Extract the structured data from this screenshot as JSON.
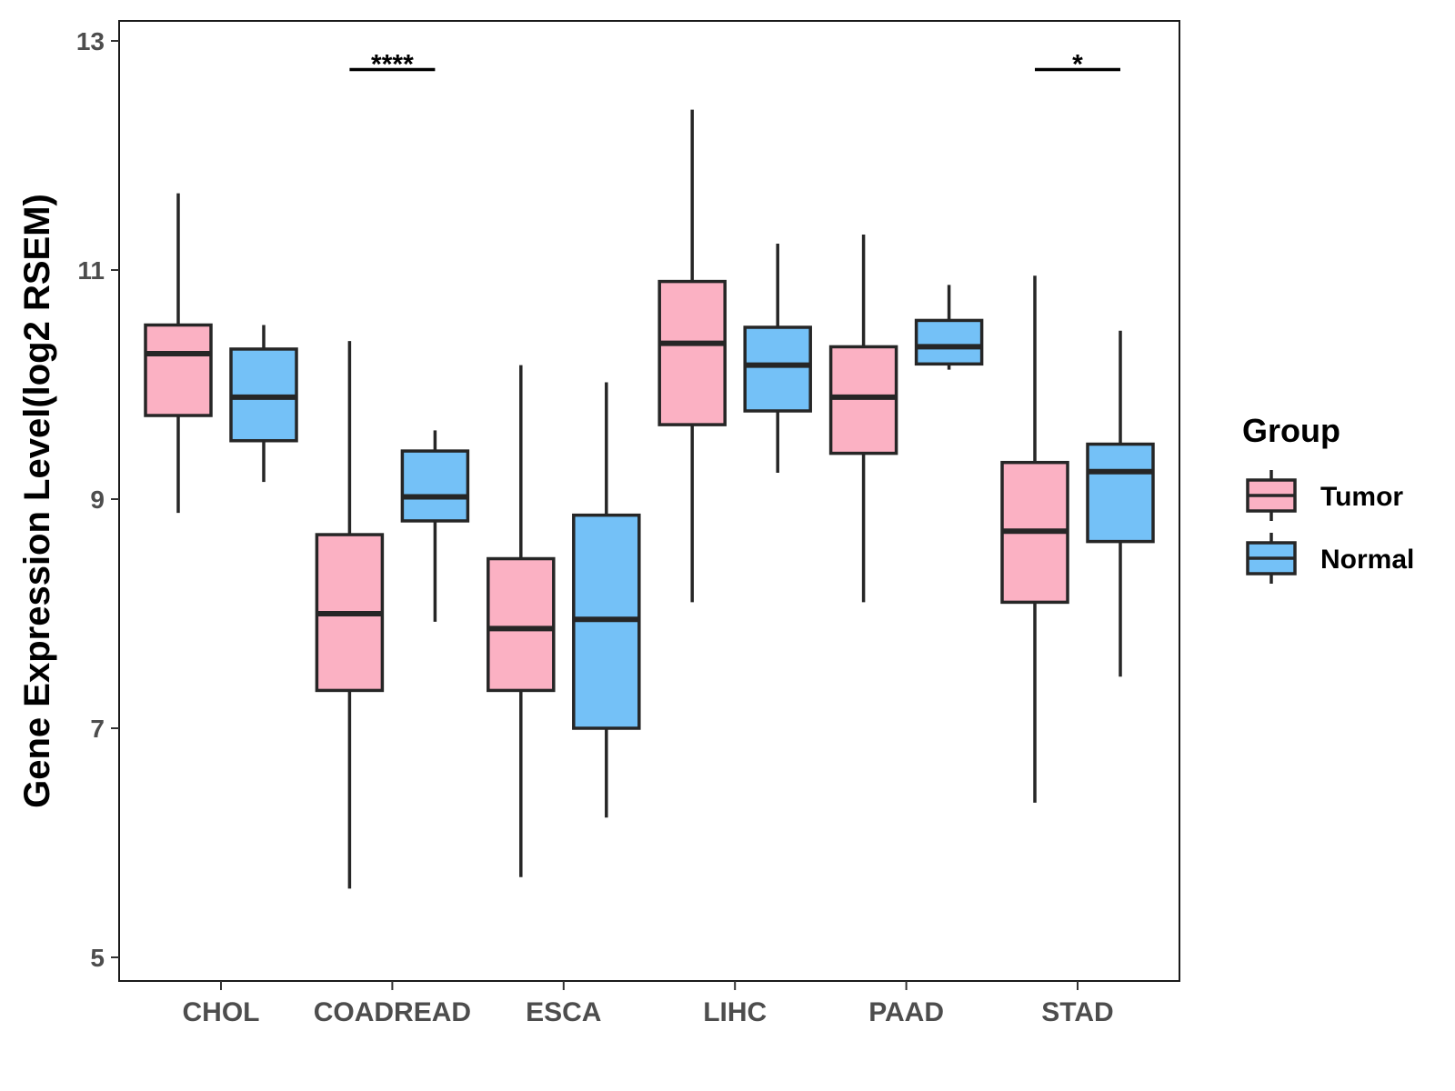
{
  "chart_data": {
    "type": "boxplot",
    "title": "",
    "xlabel": "",
    "ylabel": "Gene Expression Level(log2 RSEM)",
    "ylim": [
      4.8,
      13.2
    ],
    "yticks": [
      5,
      7,
      9,
      11,
      13
    ],
    "categories": [
      "CHOL",
      "COADREAD",
      "ESCA",
      "LIHC",
      "PAAD",
      "STAD"
    ],
    "legend": {
      "title": "Group",
      "position": "right",
      "entries": [
        "Tumor",
        "Normal"
      ]
    },
    "series": [
      {
        "name": "Tumor",
        "color": "#fbb1c3",
        "boxes": [
          {
            "category": "CHOL",
            "min": 8.88,
            "q1": 9.73,
            "median": 10.27,
            "q3": 10.52,
            "max": 11.67
          },
          {
            "category": "COADREAD",
            "min": 5.6,
            "q1": 7.33,
            "median": 8.0,
            "q3": 8.69,
            "max": 10.38
          },
          {
            "category": "ESCA",
            "min": 5.7,
            "q1": 7.33,
            "median": 7.87,
            "q3": 8.48,
            "max": 10.17
          },
          {
            "category": "LIHC",
            "min": 8.1,
            "q1": 9.65,
            "median": 10.36,
            "q3": 10.9,
            "max": 12.4
          },
          {
            "category": "PAAD",
            "min": 8.1,
            "q1": 9.4,
            "median": 9.89,
            "q3": 10.33,
            "max": 11.31
          },
          {
            "category": "STAD",
            "min": 6.35,
            "q1": 8.1,
            "median": 8.72,
            "q3": 9.32,
            "max": 10.95
          }
        ]
      },
      {
        "name": "Normal",
        "color": "#74c1f7",
        "boxes": [
          {
            "category": "CHOL",
            "min": 9.15,
            "q1": 9.51,
            "median": 9.89,
            "q3": 10.31,
            "max": 10.52
          },
          {
            "category": "COADREAD",
            "min": 7.93,
            "q1": 8.81,
            "median": 9.02,
            "q3": 9.42,
            "max": 9.6
          },
          {
            "category": "ESCA",
            "min": 6.22,
            "q1": 7.0,
            "median": 7.95,
            "q3": 8.86,
            "max": 10.02
          },
          {
            "category": "LIHC",
            "min": 9.23,
            "q1": 9.77,
            "median": 10.17,
            "q3": 10.5,
            "max": 11.23
          },
          {
            "category": "PAAD",
            "min": 10.13,
            "q1": 10.18,
            "median": 10.33,
            "q3": 10.56,
            "max": 10.87
          },
          {
            "category": "STAD",
            "min": 7.45,
            "q1": 8.63,
            "median": 9.24,
            "q3": 9.48,
            "max": 10.47
          }
        ]
      }
    ],
    "annotations": [
      {
        "category": "COADREAD",
        "label": "****",
        "y": 12.75
      },
      {
        "category": "STAD",
        "label": "*",
        "y": 12.75
      }
    ]
  }
}
